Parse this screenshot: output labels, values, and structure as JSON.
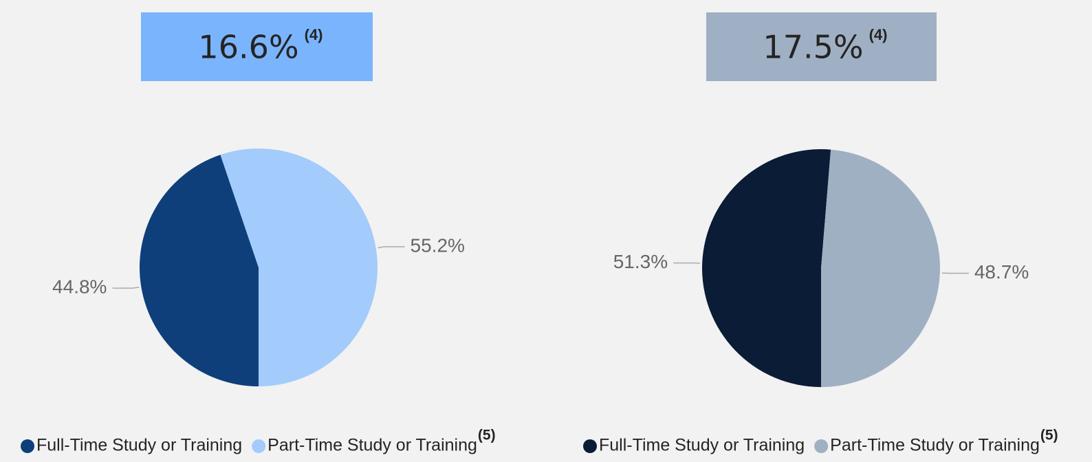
{
  "chart_data": [
    {
      "type": "pie",
      "title": "16.6%",
      "title_note": "(4)",
      "header_color": "#7ab4fd",
      "categories": [
        "Full-Time Study or Training",
        "Part-Time Study or Training"
      ],
      "values": [
        44.8,
        55.2
      ],
      "value_labels": [
        "44.8%",
        "55.2%"
      ],
      "colors": [
        "#0f3f7a",
        "#a3cbfc"
      ],
      "legend_note": "(5)"
    },
    {
      "type": "pie",
      "title": "17.5%",
      "title_note": "(4)",
      "header_color": "#a0b0c4",
      "categories": [
        "Full-Time Study or Training",
        "Part-Time Study or Training"
      ],
      "values": [
        51.3,
        48.7
      ],
      "value_labels": [
        "51.3%",
        "48.7%"
      ],
      "colors": [
        "#0a1c36",
        "#9fb0c3"
      ],
      "legend_note": "(5)"
    }
  ]
}
